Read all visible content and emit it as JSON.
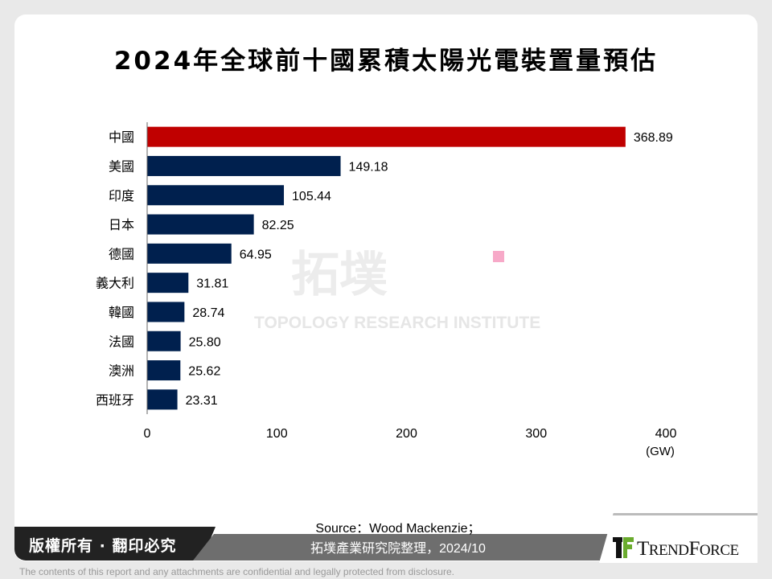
{
  "title": "2024年全球前十國累積太陽光電裝置量預估",
  "watermark": {
    "main": "拓墣",
    "sub": "TOPOLOGY RESEARCH INSTITUTE"
  },
  "chart_data": {
    "type": "bar",
    "orientation": "horizontal",
    "title": "2024年全球前十國累積太陽光電裝置量預估",
    "categories": [
      "中國",
      "美國",
      "印度",
      "日本",
      "德國",
      "義大利",
      "韓國",
      "法國",
      "澳洲",
      "西班牙"
    ],
    "values": [
      368.89,
      149.18,
      105.44,
      82.25,
      64.95,
      31.81,
      28.74,
      25.8,
      25.62,
      23.31
    ],
    "value_labels": [
      "368.89",
      "149.18",
      "105.44",
      "82.25",
      "64.95",
      "31.81",
      "28.74",
      "25.80",
      "25.62",
      "23.31"
    ],
    "xlim": [
      0,
      400
    ],
    "x_ticks": [
      "0",
      "100",
      "200",
      "300",
      "400"
    ],
    "x_unit": "(GW)",
    "grid": false,
    "colors": {
      "highlight": "#c00000",
      "default": "#00204e"
    }
  },
  "footer": {
    "copyright": "版權所有 · 翻印必究",
    "source_line1": "Source：Wood Mackenzie；",
    "source_line2": "拓墣產業研究院整理，2024/10",
    "brand": "TRENDFORCE",
    "disclaimer": "The contents of this report and any attachments are confidential and legally protected from disclosure."
  }
}
